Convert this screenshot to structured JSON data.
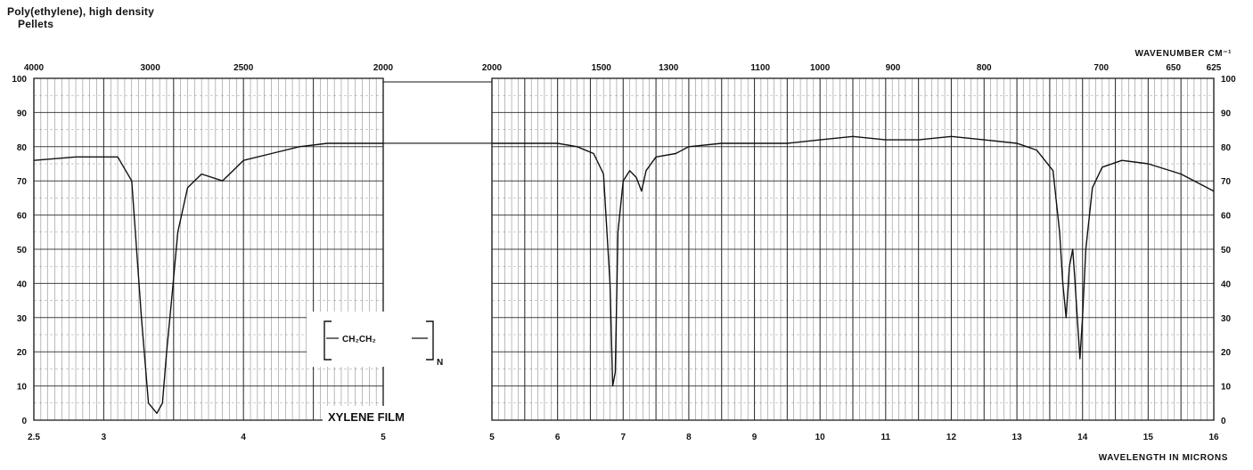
{
  "header": {
    "title": "Poly(ethylene), high density",
    "subtitle": "Pellets"
  },
  "annotations": {
    "formula_unit": "CH₂CH₂",
    "formula_subscript": "N",
    "film_label": "XYLENE FILM"
  },
  "chart_data": {
    "type": "line",
    "title": "Poly(ethylene), high density",
    "subtitle": "Pellets",
    "xlabel": "WAVELENGTH IN MICRONS",
    "x2label": "WAVENUMBER CM⁻¹",
    "ylabel": "",
    "grid": true,
    "panels": [
      {
        "name": "left",
        "xlim": [
          2.5,
          5
        ]
      },
      {
        "name": "right",
        "xlim": [
          5,
          16
        ]
      }
    ],
    "ylim": [
      0,
      100
    ],
    "y_ticks": [
      0,
      10,
      20,
      30,
      40,
      50,
      60,
      70,
      80,
      90,
      100
    ],
    "wavelength_tick_labels": [
      "2.5",
      "3",
      "4",
      "5",
      "5",
      "6",
      "7",
      "8",
      "9",
      "10",
      "11",
      "12",
      "13",
      "14",
      "15",
      "16"
    ],
    "wavenumber_tick_labels": [
      "4000",
      "3000",
      "2500",
      "2000",
      "2000",
      "1500",
      "1300",
      "1100",
      "1000",
      "900",
      "800",
      "700",
      "650",
      "625"
    ],
    "series": [
      {
        "x": [
          2.5,
          2.8,
          3.1,
          3.2,
          3.27,
          3.32,
          3.38,
          3.42,
          3.45,
          3.49,
          3.53,
          3.6,
          3.7,
          3.85,
          4.0,
          4.2,
          4.4,
          4.6,
          4.8,
          5.0,
          5.5,
          6.0,
          6.3,
          6.55,
          6.7,
          6.8,
          6.84,
          6.88,
          6.92,
          7.0,
          7.1,
          7.2,
          7.28,
          7.35,
          7.5,
          7.8,
          8.0,
          8.5,
          9.0,
          9.5,
          10.0,
          10.5,
          11.0,
          11.5,
          12.0,
          12.5,
          13.0,
          13.3,
          13.55,
          13.65,
          13.7,
          13.75,
          13.8,
          13.85,
          13.88,
          13.92,
          13.96,
          14.0,
          14.05,
          14.15,
          14.3,
          14.6,
          15.0,
          15.5,
          16.0
        ],
        "y": [
          76,
          77,
          77,
          70,
          30,
          5,
          2,
          5,
          20,
          37,
          55,
          68,
          72,
          70,
          76,
          78,
          80,
          81,
          81,
          81,
          81,
          81,
          80,
          78,
          72,
          40,
          10,
          14,
          55,
          70,
          73,
          71,
          67,
          73,
          77,
          78,
          80,
          81,
          81,
          81,
          82,
          83,
          82,
          82,
          83,
          82,
          81,
          79,
          73,
          55,
          40,
          30,
          45,
          50,
          42,
          30,
          18,
          30,
          50,
          68,
          74,
          76,
          75,
          72,
          67
        ]
      }
    ]
  }
}
